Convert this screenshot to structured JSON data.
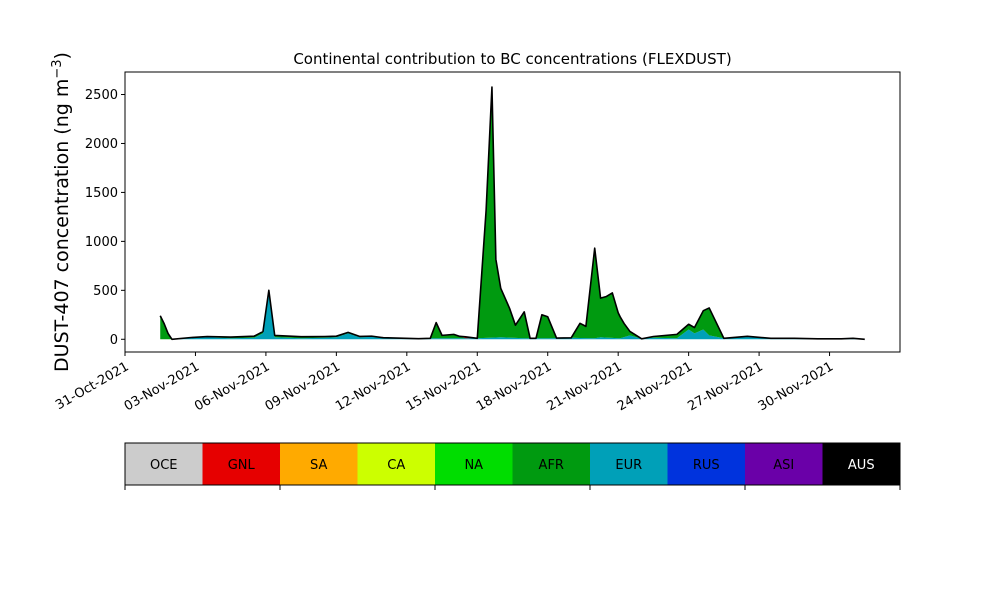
{
  "chart_data": {
    "type": "area",
    "title": "Continental contribution to BC concentrations (FLEXDUST)",
    "ylabel": "DUST-407 concentration (ng m",
    "ylabel_sup": "−3",
    "ylabel_close": ")",
    "ylim": [
      -130,
      2730
    ],
    "yticks": [
      0,
      500,
      1000,
      1500,
      2000,
      2500
    ],
    "xlim": [
      "2021-10-31T00:00",
      "2021-12-03T00:00"
    ],
    "xticks": [
      "31-Oct-2021",
      "03-Nov-2021",
      "06-Nov-2021",
      "09-Nov-2021",
      "12-Nov-2021",
      "15-Nov-2021",
      "18-Nov-2021",
      "21-Nov-2021",
      "24-Nov-2021",
      "27-Nov-2021",
      "30-Nov-2021"
    ],
    "grid": false,
    "legend_placement": "below",
    "legend": [
      {
        "label": "OCE",
        "color": "#cccccc",
        "text_color": "#000000"
      },
      {
        "label": "GNL",
        "color": "#e60000",
        "text_color": "#000000"
      },
      {
        "label": "SA",
        "color": "#ffaa00",
        "text_color": "#000000"
      },
      {
        "label": "CA",
        "color": "#ccff00",
        "text_color": "#000000"
      },
      {
        "label": "NA",
        "color": "#00dd00",
        "text_color": "#000000"
      },
      {
        "label": "AFR",
        "color": "#009a10",
        "text_color": "#000000"
      },
      {
        "label": "EUR",
        "color": "#00a0b8",
        "text_color": "#000000"
      },
      {
        "label": "RUS",
        "color": "#0033dd",
        "text_color": "#000000"
      },
      {
        "label": "ASI",
        "color": "#6a00a8",
        "text_color": "#000000"
      },
      {
        "label": "AUS",
        "color": "#000000",
        "text_color": "#ffffff"
      }
    ],
    "series": [
      {
        "label": "EUR",
        "color": "#00a0b8",
        "values": [
          [
            "2021-11-01T12:00",
            0
          ],
          [
            "2021-11-02T00:00",
            0
          ],
          [
            "2021-11-02T21:00",
            15
          ],
          [
            "2021-11-03T12:00",
            20
          ],
          [
            "2021-11-04T00:00",
            15
          ],
          [
            "2021-11-04T12:00",
            10
          ],
          [
            "2021-11-05T12:00",
            15
          ],
          [
            "2021-11-05T21:00",
            60
          ],
          [
            "2021-11-06T03:00",
            480
          ],
          [
            "2021-11-06T09:00",
            20
          ],
          [
            "2021-11-07T12:00",
            10
          ],
          [
            "2021-11-08T12:00",
            15
          ],
          [
            "2021-11-09T00:00",
            20
          ],
          [
            "2021-11-09T12:00",
            60
          ],
          [
            "2021-11-10T00:00",
            20
          ],
          [
            "2021-11-10T12:00",
            25
          ],
          [
            "2021-11-11T00:00",
            10
          ],
          [
            "2021-11-12T12:00",
            5
          ],
          [
            "2021-11-13T00:00",
            10
          ],
          [
            "2021-11-14T00:00",
            10
          ],
          [
            "2021-11-15T00:00",
            10
          ],
          [
            "2021-11-16T00:00",
            20
          ],
          [
            "2021-11-17T00:00",
            10
          ],
          [
            "2021-11-18T00:00",
            10
          ],
          [
            "2021-11-19T00:00",
            15
          ],
          [
            "2021-11-20T00:00",
            10
          ],
          [
            "2021-11-20T06:00",
            20
          ],
          [
            "2021-11-21T02:00",
            10
          ],
          [
            "2021-11-21T12:00",
            40
          ],
          [
            "2021-11-22T00:00",
            5
          ],
          [
            "2021-11-22T12:00",
            15
          ],
          [
            "2021-11-23T12:00",
            10
          ],
          [
            "2021-11-24T00:00",
            100
          ],
          [
            "2021-11-24T06:00",
            60
          ],
          [
            "2021-11-24T15:00",
            100
          ],
          [
            "2021-11-24T21:00",
            40
          ],
          [
            "2021-11-25T12:00",
            10
          ],
          [
            "2021-11-26T12:00",
            30
          ],
          [
            "2021-11-27T12:00",
            10
          ],
          [
            "2021-11-28T12:00",
            10
          ],
          [
            "2021-11-29T12:00",
            5
          ],
          [
            "2021-11-30T12:00",
            5
          ],
          [
            "2021-12-01T00:00",
            10
          ],
          [
            "2021-12-01T12:00",
            0
          ]
        ]
      },
      {
        "label": "AFR",
        "color": "#009a10",
        "values": [
          [
            "2021-11-01T12:00",
            240
          ],
          [
            "2021-11-01T16:00",
            160
          ],
          [
            "2021-11-01T20:00",
            60
          ],
          [
            "2021-11-02T00:00",
            0
          ],
          [
            "2021-11-06T03:00",
            20
          ],
          [
            "2021-11-09T12:00",
            10
          ],
          [
            "2021-11-13T00:00",
            0
          ],
          [
            "2021-11-13T06:00",
            160
          ],
          [
            "2021-11-13T12:00",
            30
          ],
          [
            "2021-11-14T00:00",
            40
          ],
          [
            "2021-11-14T12:00",
            0
          ],
          [
            "2021-11-15T00:00",
            0
          ],
          [
            "2021-11-15T09:00",
            1300
          ],
          [
            "2021-11-15T15:00",
            2560
          ],
          [
            "2021-11-15T19:00",
            800
          ],
          [
            "2021-11-16T00:00",
            500
          ],
          [
            "2021-11-16T09:00",
            300
          ],
          [
            "2021-11-16T15:00",
            130
          ],
          [
            "2021-11-17T00:00",
            270
          ],
          [
            "2021-11-17T06:00",
            0
          ],
          [
            "2021-11-17T12:00",
            0
          ],
          [
            "2021-11-17T18:00",
            240
          ],
          [
            "2021-11-18T00:00",
            220
          ],
          [
            "2021-11-18T09:00",
            0
          ],
          [
            "2021-11-19T00:00",
            0
          ],
          [
            "2021-11-19T09:00",
            150
          ],
          [
            "2021-11-19T15:00",
            120
          ],
          [
            "2021-11-20T00:00",
            920
          ],
          [
            "2021-11-20T06:00",
            400
          ],
          [
            "2021-11-20T12:00",
            420
          ],
          [
            "2021-11-20T18:00",
            460
          ],
          [
            "2021-11-21T00:00",
            260
          ],
          [
            "2021-11-21T06:00",
            140
          ],
          [
            "2021-11-21T12:00",
            40
          ],
          [
            "2021-11-22T00:00",
            0
          ],
          [
            "2021-11-24T06:00",
            60
          ],
          [
            "2021-11-24T21:00",
            280
          ],
          [
            "2021-11-25T12:00",
            0
          ],
          [
            "2021-12-01T12:00",
            0
          ]
        ]
      },
      {
        "label": "GNL",
        "color": "#e60000",
        "values": [
          [
            "2021-11-01T12:00",
            0
          ],
          [
            "2021-11-14T06:00",
            0
          ],
          [
            "2021-11-14T12:00",
            15
          ],
          [
            "2021-11-15T00:00",
            0
          ],
          [
            "2021-12-01T12:00",
            0
          ]
        ]
      }
    ]
  }
}
